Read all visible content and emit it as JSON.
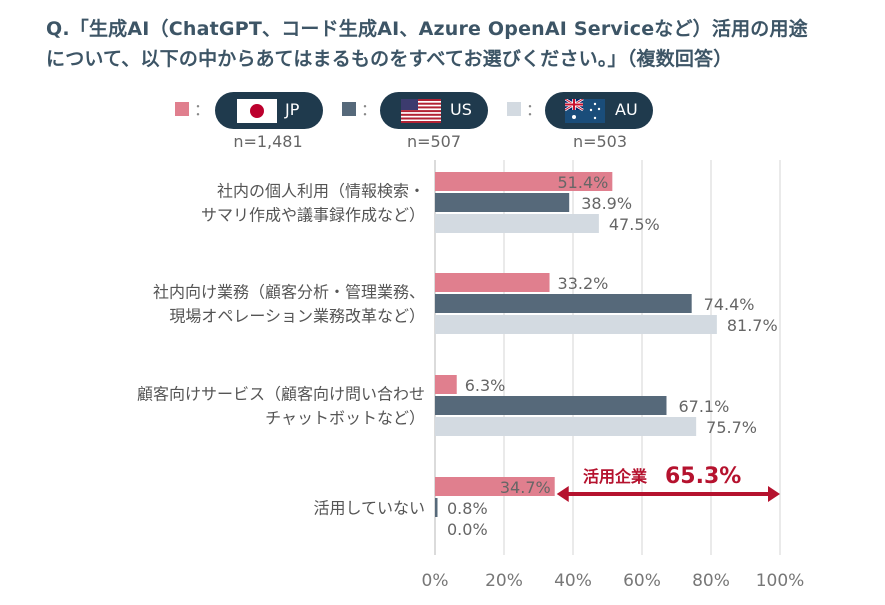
{
  "title": {
    "line1": "Q.「生成AI（ChatGPT、コード生成AI、Azure OpenAI Serviceなど）活用の用途",
    "line2": "について、以下の中からあてはまるものをすべてお選びください。」（複数回答）"
  },
  "legend": [
    {
      "name": "JP",
      "n": "n=1,481",
      "color": "#e07f8e",
      "flag": "japan-flag-icon"
    },
    {
      "name": "US",
      "n": "n=507",
      "color": "#56697a",
      "flag": "us-flag-icon"
    },
    {
      "name": "AU",
      "n": "n=503",
      "color": "#d3dae1",
      "flag": "australia-flag-icon"
    }
  ],
  "legend_colon": "：",
  "annotation": {
    "label": "活用企業",
    "value": "65.3%",
    "color": "#b5122e"
  },
  "chart_data": {
    "type": "bar",
    "orientation": "horizontal",
    "title": "Q.「生成AI（ChatGPT、コード生成AI、Azure OpenAI Serviceなど）活用の用途について、以下の中からあてはまるものをすべてお選びください。」（複数回答）",
    "categories": [
      [
        "社内の個人利用（情報検索・",
        "サマリ作成や議事録作成など）"
      ],
      [
        "社内向け業務（顧客分析・管理業務、",
        "現場オペレーション業務改革など）"
      ],
      [
        "顧客向けサービス（顧客向け問い合わせ",
        "チャットボットなど）"
      ],
      [
        "活用していない"
      ]
    ],
    "series": [
      {
        "name": "JP",
        "values": [
          51.4,
          33.2,
          6.3,
          34.7
        ],
        "labels": [
          "51.4%",
          "33.2%",
          "6.3%",
          "34.7%"
        ]
      },
      {
        "name": "US",
        "values": [
          38.9,
          74.4,
          67.1,
          0.8
        ],
        "labels": [
          "38.9%",
          "74.4%",
          "67.1%",
          "0.8%"
        ]
      },
      {
        "name": "AU",
        "values": [
          47.5,
          81.7,
          75.7,
          0.0
        ],
        "labels": [
          "47.5%",
          "81.7%",
          "75.7%",
          "0.0%"
        ]
      }
    ],
    "xlim": [
      0,
      100
    ],
    "xticks": [
      "0%",
      "20%",
      "40%",
      "60%",
      "80%",
      "100%"
    ],
    "grid": true,
    "legend_position": "top",
    "annotations": [
      {
        "text": "活用企業 65.3%",
        "type": "double-arrow",
        "from": 34.7,
        "to": 100
      }
    ]
  }
}
